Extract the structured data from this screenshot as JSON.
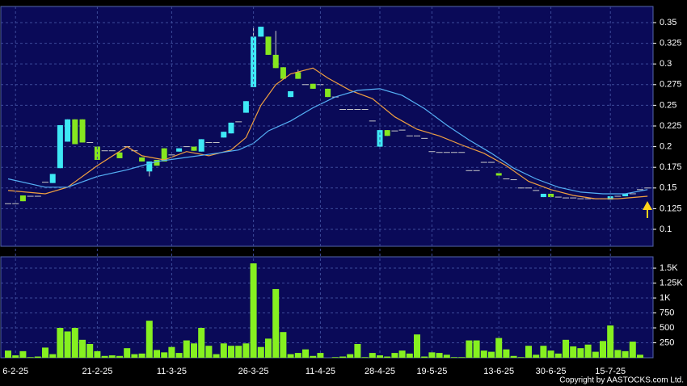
{
  "chart_data": [
    {
      "type": "candlestick",
      "up_color": "#3ee8f5",
      "down_color": "#86e61f",
      "flat_color": "#c8c8c8",
      "open": [
        0.131,
        0.131,
        0.141,
        0.14,
        0.14,
        0.157,
        0.156,
        0.174,
        0.206,
        0.233,
        0.233,
        0.205,
        0.2,
        0.195,
        0.195,
        0.193,
        0.2,
        0.195,
        0.187,
        0.17,
        0.184,
        0.198,
        0.19,
        0.194,
        0.2,
        0.2,
        0.194,
        0.205,
        0.205,
        0.211,
        0.216,
        0.23,
        0.241,
        0.272,
        0.333,
        0.333,
        0.311,
        0.296,
        0.26,
        0.29,
        0.275,
        0.276,
        0.275,
        0.27,
        0.26,
        0.245,
        0.245,
        0.245,
        0.245,
        0.231,
        0.2,
        0.22,
        0.219,
        0.22,
        0.213,
        0.213,
        0.21,
        0.194,
        0.193,
        0.193,
        0.193,
        0.193,
        0.171,
        0.171,
        0.181,
        0.181,
        0.168,
        0.161,
        0.16,
        0.15,
        0.15,
        0.147,
        0.139,
        0.143,
        0.139,
        0.138,
        0.138,
        0.137,
        0.137,
        0.137,
        0.137,
        0.136,
        0.14,
        0.14,
        0.143,
        0.148,
        0.15
      ],
      "high": [
        0.131,
        0.131,
        0.141,
        0.14,
        0.14,
        0.157,
        0.167,
        0.226,
        0.233,
        0.233,
        0.233,
        0.205,
        0.2,
        0.195,
        0.195,
        0.193,
        0.2,
        0.195,
        0.187,
        0.182,
        0.184,
        0.198,
        0.19,
        0.198,
        0.2,
        0.2,
        0.209,
        0.205,
        0.205,
        0.218,
        0.229,
        0.23,
        0.255,
        0.345,
        0.345,
        0.333,
        0.34,
        0.296,
        0.267,
        0.293,
        0.275,
        0.276,
        0.275,
        0.27,
        0.26,
        0.245,
        0.245,
        0.245,
        0.245,
        0.231,
        0.22,
        0.22,
        0.219,
        0.22,
        0.213,
        0.213,
        0.21,
        0.194,
        0.193,
        0.193,
        0.193,
        0.193,
        0.171,
        0.171,
        0.181,
        0.181,
        0.168,
        0.161,
        0.16,
        0.15,
        0.15,
        0.147,
        0.143,
        0.143,
        0.139,
        0.138,
        0.138,
        0.137,
        0.137,
        0.137,
        0.137,
        0.14,
        0.14,
        0.143,
        0.143,
        0.148,
        0.15
      ],
      "low": [
        0.131,
        0.131,
        0.134,
        0.14,
        0.14,
        0.157,
        0.156,
        0.174,
        0.206,
        0.203,
        0.205,
        0.205,
        0.184,
        0.195,
        0.195,
        0.186,
        0.2,
        0.195,
        0.182,
        0.164,
        0.177,
        0.182,
        0.19,
        0.194,
        0.2,
        0.195,
        0.194,
        0.205,
        0.205,
        0.211,
        0.216,
        0.23,
        0.241,
        0.272,
        0.333,
        0.311,
        0.295,
        0.282,
        0.26,
        0.282,
        0.275,
        0.27,
        0.275,
        0.26,
        0.26,
        0.245,
        0.245,
        0.245,
        0.245,
        0.231,
        0.2,
        0.213,
        0.219,
        0.22,
        0.213,
        0.213,
        0.21,
        0.194,
        0.193,
        0.193,
        0.193,
        0.193,
        0.171,
        0.171,
        0.181,
        0.181,
        0.165,
        0.161,
        0.16,
        0.15,
        0.15,
        0.147,
        0.139,
        0.139,
        0.139,
        0.138,
        0.138,
        0.137,
        0.137,
        0.137,
        0.137,
        0.136,
        0.14,
        0.14,
        0.143,
        0.148,
        0.15
      ],
      "close": [
        0.131,
        0.131,
        0.134,
        0.14,
        0.14,
        0.157,
        0.167,
        0.226,
        0.233,
        0.203,
        0.205,
        0.205,
        0.184,
        0.195,
        0.195,
        0.186,
        0.2,
        0.195,
        0.182,
        0.182,
        0.177,
        0.182,
        0.19,
        0.198,
        0.2,
        0.195,
        0.209,
        0.205,
        0.205,
        0.218,
        0.229,
        0.23,
        0.255,
        0.333,
        0.345,
        0.311,
        0.295,
        0.282,
        0.267,
        0.282,
        0.275,
        0.27,
        0.275,
        0.26,
        0.26,
        0.245,
        0.245,
        0.245,
        0.245,
        0.231,
        0.22,
        0.213,
        0.219,
        0.22,
        0.213,
        0.213,
        0.21,
        0.194,
        0.193,
        0.193,
        0.193,
        0.193,
        0.171,
        0.171,
        0.181,
        0.181,
        0.165,
        0.161,
        0.16,
        0.15,
        0.15,
        0.147,
        0.143,
        0.139,
        0.139,
        0.138,
        0.138,
        0.137,
        0.137,
        0.137,
        0.137,
        0.14,
        0.14,
        0.143,
        0.143,
        0.148,
        0.15
      ],
      "series": [
        {
          "color": "#f0a040",
          "x": [
            0,
            5,
            8,
            12,
            16,
            18,
            21,
            24,
            27,
            30,
            32,
            34,
            36,
            38,
            41,
            43,
            46,
            49,
            52,
            55,
            58,
            61,
            64,
            67,
            70,
            73,
            76,
            79,
            82,
            86
          ],
          "values": [
            0.147,
            0.143,
            0.151,
            0.177,
            0.2,
            0.189,
            0.184,
            0.194,
            0.189,
            0.196,
            0.211,
            0.25,
            0.275,
            0.288,
            0.295,
            0.283,
            0.268,
            0.258,
            0.236,
            0.221,
            0.213,
            0.202,
            0.192,
            0.177,
            0.158,
            0.148,
            0.141,
            0.137,
            0.137,
            0.14
          ]
        },
        {
          "color": "#55b0f5",
          "x": [
            0,
            5,
            8,
            12,
            16,
            20,
            24,
            28,
            31,
            33,
            35,
            38,
            41,
            44,
            47,
            50,
            53,
            56,
            59,
            62,
            65,
            68,
            71,
            74,
            77,
            80,
            83,
            86
          ],
          "values": [
            0.161,
            0.151,
            0.151,
            0.164,
            0.172,
            0.182,
            0.187,
            0.192,
            0.196,
            0.204,
            0.219,
            0.231,
            0.247,
            0.26,
            0.268,
            0.27,
            0.262,
            0.246,
            0.226,
            0.208,
            0.192,
            0.174,
            0.161,
            0.151,
            0.145,
            0.143,
            0.143,
            0.148
          ]
        }
      ],
      "ylim": [
        0.0795,
        0.3695
      ],
      "yticks": [
        0.1,
        0.125,
        0.15,
        0.175,
        0.2,
        0.225,
        0.25,
        0.275,
        0.3,
        0.325,
        0.35
      ],
      "grid": true
    },
    {
      "type": "bar",
      "color": "#86f020",
      "categories": [
        null,
        "6-2-25",
        null,
        null,
        null,
        null,
        null,
        null,
        null,
        null,
        null,
        null,
        "21-2-25",
        null,
        null,
        null,
        null,
        null,
        null,
        null,
        null,
        null,
        "11-3-25",
        null,
        null,
        null,
        null,
        null,
        null,
        null,
        null,
        null,
        null,
        "26-3-25",
        null,
        null,
        null,
        null,
        null,
        null,
        null,
        null,
        "11-4-25",
        null,
        null,
        null,
        null,
        null,
        null,
        null,
        "28-4-25",
        null,
        null,
        null,
        null,
        null,
        null,
        "19-5-25",
        null,
        null,
        null,
        null,
        null,
        null,
        null,
        null,
        "13-6-25",
        null,
        null,
        null,
        null,
        null,
        null,
        "30-6-25",
        null,
        null,
        null,
        null,
        null,
        null,
        null,
        "15-7-25",
        null,
        null,
        null,
        null,
        null
      ],
      "values": [
        120,
        40,
        110,
        10,
        20,
        170,
        60,
        500,
        440,
        500,
        300,
        230,
        110,
        30,
        40,
        30,
        160,
        60,
        70,
        620,
        130,
        90,
        180,
        80,
        290,
        240,
        500,
        200,
        60,
        240,
        200,
        200,
        240,
        1580,
        180,
        320,
        1150,
        430,
        60,
        80,
        140,
        30,
        80,
        0,
        10,
        20,
        60,
        230,
        10,
        80,
        40,
        20,
        80,
        120,
        70,
        390,
        20,
        90,
        80,
        50,
        10,
        10,
        290,
        290,
        120,
        100,
        330,
        140,
        30,
        10,
        200,
        50,
        200,
        120,
        70,
        300,
        190,
        160,
        220,
        100,
        280,
        540,
        130,
        110,
        270,
        50,
        0
      ],
      "ylim": [
        0,
        1690
      ],
      "yticks": [
        250,
        500,
        750,
        {
          "value": 1000,
          "label": "1K"
        },
        {
          "value": 1250,
          "label": "1.25K"
        },
        {
          "value": 1500,
          "label": "1.5K"
        }
      ],
      "grid": true
    }
  ],
  "copyright": "Copyright by AASTOCKS.com Ltd."
}
